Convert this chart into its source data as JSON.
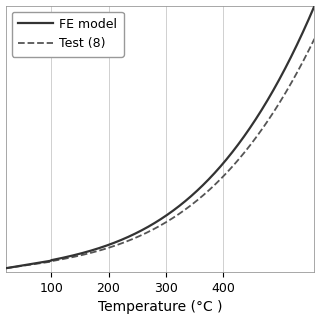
{
  "title": "",
  "xlabel": "Temperature (°C )",
  "ylabel": "",
  "xlim": [
    20,
    560
  ],
  "ylim": [
    -0.02,
    1.35
  ],
  "xticks": [
    100,
    200,
    300,
    400
  ],
  "grid_color": "#d0d0d0",
  "background_color": "#ffffff",
  "fe_model_color": "#333333",
  "test_color": "#555555",
  "fe_model_label": "FE model",
  "test_label": "Test (8)",
  "fe_model_linewidth": 1.6,
  "test_linewidth": 1.3,
  "legend_fontsize": 9,
  "xlabel_fontsize": 10
}
